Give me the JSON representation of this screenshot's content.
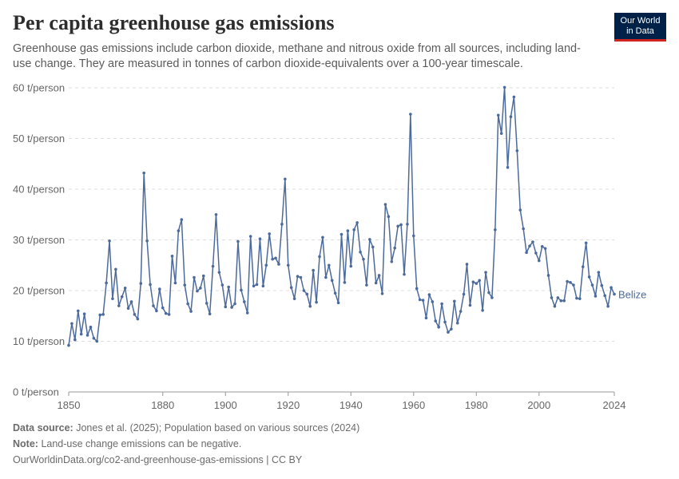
{
  "header": {
    "title": "Per capita greenhouse gas emissions",
    "subtitle": "Greenhouse gas emissions include carbon dioxide, methane and nitrous oxide from all sources, including land-use change. They are measured in tonnes of carbon dioxide-equivalents over a 100-year timescale.",
    "logo_line1": "Our World",
    "logo_line2": "in Data"
  },
  "footer": {
    "source_label": "Data source:",
    "source_text": "Jones et al. (2025); Population based on various sources (2024)",
    "note_label": "Note:",
    "note_text": "Land-use change emissions can be negative.",
    "url": "OurWorldinData.org/co2-and-greenhouse-gas-emissions | CC BY"
  },
  "chart_data": {
    "type": "line",
    "title": "Per capita greenhouse gas emissions",
    "ylabel": "",
    "xlabel": "",
    "ylim": [
      0,
      60
    ],
    "xlim": [
      1850,
      2024
    ],
    "y_ticks": [
      0,
      10,
      20,
      30,
      40,
      50,
      60
    ],
    "y_tick_labels": [
      "0 t/person",
      "10 t/person",
      "20 t/person",
      "30 t/person",
      "40 t/person",
      "50 t/person",
      "60 t/person"
    ],
    "x_ticks": [
      1850,
      1880,
      1900,
      1920,
      1940,
      1960,
      1980,
      2000,
      2024
    ],
    "x_tick_labels": [
      "1850",
      "1880",
      "1900",
      "1920",
      "1940",
      "1960",
      "1980",
      "2000",
      "2024"
    ],
    "grid": "horizontal dashed",
    "line_color": "#4c6a9c",
    "series": [
      {
        "name": "Belize",
        "x": [
          1850,
          1851,
          1852,
          1853,
          1854,
          1855,
          1856,
          1857,
          1858,
          1859,
          1860,
          1861,
          1862,
          1863,
          1864,
          1865,
          1866,
          1867,
          1868,
          1869,
          1870,
          1871,
          1872,
          1873,
          1874,
          1875,
          1876,
          1877,
          1878,
          1879,
          1880,
          1881,
          1882,
          1883,
          1884,
          1885,
          1886,
          1887,
          1888,
          1889,
          1890,
          1891,
          1892,
          1893,
          1894,
          1895,
          1896,
          1897,
          1898,
          1899,
          1900,
          1901,
          1902,
          1903,
          1904,
          1905,
          1906,
          1907,
          1908,
          1909,
          1910,
          1911,
          1912,
          1913,
          1914,
          1915,
          1916,
          1917,
          1918,
          1919,
          1920,
          1921,
          1922,
          1923,
          1924,
          1925,
          1926,
          1927,
          1928,
          1929,
          1930,
          1931,
          1932,
          1933,
          1934,
          1935,
          1936,
          1937,
          1938,
          1939,
          1940,
          1941,
          1942,
          1943,
          1944,
          1945,
          1946,
          1947,
          1948,
          1949,
          1950,
          1951,
          1952,
          1953,
          1954,
          1955,
          1956,
          1957,
          1958,
          1959,
          1960,
          1961,
          1962,
          1963,
          1964,
          1965,
          1966,
          1967,
          1968,
          1969,
          1970,
          1971,
          1972,
          1973,
          1974,
          1975,
          1976,
          1977,
          1978,
          1979,
          1980,
          1981,
          1982,
          1983,
          1984,
          1985,
          1986,
          1987,
          1988,
          1989,
          1990,
          1991,
          1992,
          1993,
          1994,
          1995,
          1996,
          1997,
          1998,
          1999,
          2000,
          2001,
          2002,
          2003,
          2004,
          2005,
          2006,
          2007,
          2008,
          2009,
          2010,
          2011,
          2012,
          2013,
          2014,
          2015,
          2016,
          2017,
          2018,
          2019,
          2020,
          2021,
          2022,
          2023,
          2024
        ],
        "values": [
          9.2,
          13.5,
          10.3,
          16.0,
          11.4,
          15.4,
          11.2,
          12.8,
          10.6,
          10.0,
          15.2,
          15.3,
          21.5,
          29.8,
          18.4,
          24.2,
          17.0,
          18.8,
          20.5,
          16.5,
          17.8,
          15.3,
          14.4,
          21.4,
          43.2,
          29.8,
          21.2,
          17.0,
          16.0,
          20.3,
          16.6,
          15.5,
          15.3,
          26.8,
          21.5,
          31.8,
          34.0,
          21.1,
          17.4,
          15.9,
          22.6,
          19.9,
          20.5,
          22.9,
          17.5,
          15.4,
          24.8,
          35.0,
          23.6,
          21.1,
          16.8,
          20.7,
          16.7,
          17.4,
          29.7,
          20.1,
          17.8,
          15.6,
          30.7,
          20.9,
          21.2,
          30.2,
          20.9,
          25.0,
          31.2,
          26.2,
          26.4,
          25.2,
          33.1,
          42.0,
          25.0,
          20.6,
          18.4,
          22.8,
          22.6,
          20.0,
          19.3,
          16.9,
          24.0,
          17.7,
          26.7,
          30.5,
          22.6,
          25.0,
          22.0,
          19.5,
          17.6,
          31.1,
          21.6,
          31.8,
          24.8,
          32.0,
          33.4,
          27.6,
          26.2,
          21.1,
          30.1,
          28.6,
          21.5,
          23.0,
          19.4,
          37.0,
          34.6,
          25.7,
          28.4,
          32.7,
          33.0,
          23.2,
          33.1,
          54.8,
          30.8,
          20.4,
          18.2,
          18.1,
          14.6,
          19.2,
          17.8,
          14.0,
          12.8,
          17.4,
          13.8,
          11.8,
          12.4,
          17.9,
          13.6,
          15.9,
          19.3,
          25.2,
          17.1,
          21.7,
          21.4,
          22.0,
          16.1,
          23.6,
          19.6,
          18.6,
          32.0,
          54.6,
          51.0,
          60.1,
          44.3,
          54.3,
          58.2,
          47.6,
          35.9,
          32.2,
          27.5,
          28.8,
          29.6,
          27.4,
          25.9,
          28.7,
          28.3,
          23.0,
          18.6,
          16.9,
          18.6,
          18.0,
          18.0,
          21.8,
          21.6,
          21.1,
          18.5,
          18.4,
          24.7,
          29.4,
          22.7,
          21.1,
          18.9,
          23.6,
          21.0,
          19.0,
          16.9,
          20.6,
          19.3
        ]
      }
    ]
  }
}
